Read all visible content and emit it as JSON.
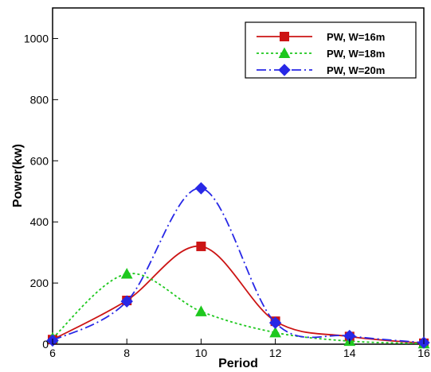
{
  "chart_data": {
    "type": "line",
    "title": "",
    "xlabel": "Period",
    "ylabel": "Power(kw)",
    "xlim": [
      6,
      16
    ],
    "ylim": [
      0,
      1100
    ],
    "x_ticks": [
      6,
      8,
      10,
      12,
      14,
      16
    ],
    "y_ticks": [
      0,
      200,
      400,
      600,
      800,
      1000
    ],
    "grid": false,
    "legend_position": "top-right",
    "series": [
      {
        "name": "PW, W=16m",
        "color": "#cc1414",
        "marker": "square",
        "line_style": "solid",
        "x": [
          6,
          8,
          10,
          12,
          14,
          16
        ],
        "y": [
          15,
          143,
          320,
          75,
          25,
          3
        ]
      },
      {
        "name": "PW, W=18m",
        "color": "#1ec81e",
        "marker": "triangle",
        "line_style": "dotted",
        "x": [
          6,
          8,
          10,
          12,
          14,
          16
        ],
        "y": [
          20,
          230,
          107,
          38,
          10,
          2
        ]
      },
      {
        "name": "PW, W=20m",
        "color": "#2828e6",
        "marker": "diamond",
        "line_style": "dash-dot",
        "x": [
          6,
          8,
          10,
          12,
          14,
          16
        ],
        "y": [
          12,
          140,
          510,
          70,
          27,
          5
        ]
      }
    ]
  }
}
